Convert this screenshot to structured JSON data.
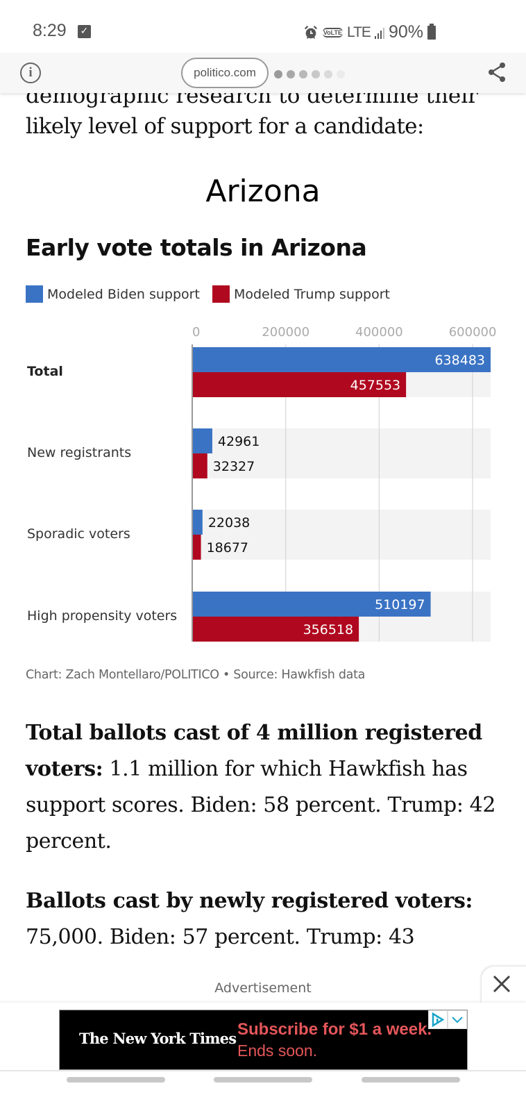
{
  "status_bar": {
    "time": "8:29",
    "volte": "VoLTE",
    "network": "LTE",
    "battery": "90%",
    "icons": [
      "checkbox-notification-icon",
      "alarm-icon",
      "volte-icon",
      "signal-icon",
      "battery-icon"
    ]
  },
  "browser": {
    "url": "politico.com",
    "info_icon": "info-icon",
    "share_icon": "share-icon",
    "tab_dot_colors": [
      "#9a9a9a",
      "#a8a8a8",
      "#b8b8b8",
      "#c8c8c8",
      "#dadada",
      "#ebebeb"
    ]
  },
  "article": {
    "cut_line": "demographic research to determine their",
    "intro_line": "likely level of support for a candidate:",
    "state_heading": "Arizona",
    "paragraphs": [
      {
        "bold": "Total ballots cast of 4 million registered voters:",
        "text": " 1.1 million for which Hawkfish has support scores. Biden: 58 percent. Trump: 42 percent."
      },
      {
        "bold": "Ballots cast by newly registered voters:",
        "text": " 75,000. Biden: 57 percent. Trump: 43"
      }
    ]
  },
  "chart_data": {
    "type": "bar",
    "orientation": "horizontal",
    "title": "Early vote totals in Arizona",
    "categories": [
      "Total",
      "New registrants",
      "Sporadic voters",
      "High propensity voters"
    ],
    "series": [
      {
        "name": "Modeled Biden support",
        "color": "#3a73c4",
        "values": [
          638483,
          42961,
          22038,
          510197
        ]
      },
      {
        "name": "Modeled Trump support",
        "color": "#b0081f",
        "values": [
          457553,
          32327,
          18677,
          356518
        ]
      }
    ],
    "xlabel": "",
    "ylabel": "",
    "x_ticks": [
      "0",
      "200000",
      "400000",
      "600000"
    ],
    "xlim": [
      0,
      638483
    ],
    "grid": true,
    "legend_position": "top-left",
    "credit": "Chart: Zach Montellaro/POLITICO • Source: Hawkfish data"
  },
  "ad": {
    "label": "Advertisement",
    "brand": "The New York Times",
    "headline": "Subscribe for $1 a week.",
    "subline": "Ends soon.",
    "close_icon": "close-icon"
  }
}
